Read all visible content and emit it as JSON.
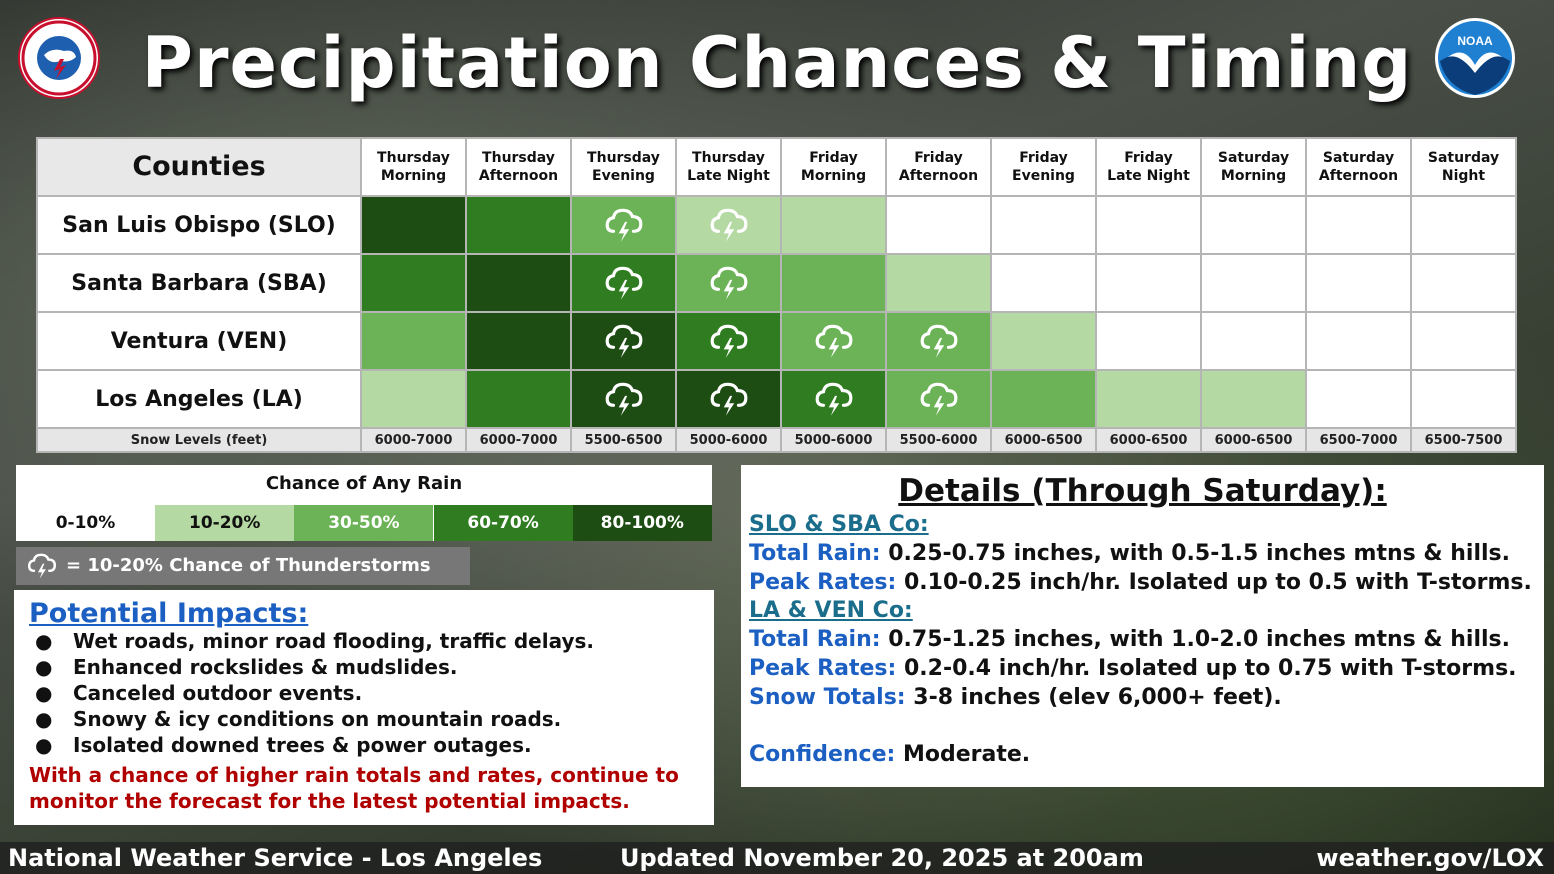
{
  "header": {
    "title": "Precipitation Chances & Timing",
    "left_logo": "National Weather Service",
    "right_logo": "NOAA"
  },
  "table": {
    "counties_header": "Counties",
    "periods": [
      [
        "Thursday",
        "Morning"
      ],
      [
        "Thursday",
        "Afternoon"
      ],
      [
        "Thursday",
        "Evening"
      ],
      [
        "Thursday",
        "Late Night"
      ],
      [
        "Friday",
        "Morning"
      ],
      [
        "Friday",
        "Afternoon"
      ],
      [
        "Friday",
        "Evening"
      ],
      [
        "Friday",
        "Late Night"
      ],
      [
        "Saturday",
        "Morning"
      ],
      [
        "Saturday",
        "Afternoon"
      ],
      [
        "Saturday",
        "Night"
      ]
    ],
    "counties": [
      {
        "name": "San Luis Obispo (SLO)",
        "chances": [
          "80-100%",
          "60-70%",
          "30-50%",
          "10-20%",
          "10-20%",
          "0-10%",
          "0-10%",
          "0-10%",
          "0-10%",
          "0-10%",
          "0-10%"
        ],
        "tstorms": [
          false,
          false,
          true,
          true,
          false,
          false,
          false,
          false,
          false,
          false,
          false
        ]
      },
      {
        "name": "Santa Barbara (SBA)",
        "chances": [
          "60-70%",
          "80-100%",
          "60-70%",
          "30-50%",
          "30-50%",
          "10-20%",
          "0-10%",
          "0-10%",
          "0-10%",
          "0-10%",
          "0-10%"
        ],
        "tstorms": [
          false,
          false,
          true,
          true,
          false,
          false,
          false,
          false,
          false,
          false,
          false
        ]
      },
      {
        "name": "Ventura (VEN)",
        "chances": [
          "30-50%",
          "80-100%",
          "80-100%",
          "60-70%",
          "30-50%",
          "30-50%",
          "10-20%",
          "0-10%",
          "0-10%",
          "0-10%",
          "0-10%"
        ],
        "tstorms": [
          false,
          false,
          true,
          true,
          true,
          true,
          false,
          false,
          false,
          false,
          false
        ]
      },
      {
        "name": "Los Angeles (LA)",
        "chances": [
          "10-20%",
          "60-70%",
          "80-100%",
          "80-100%",
          "60-70%",
          "30-50%",
          "30-50%",
          "10-20%",
          "10-20%",
          "0-10%",
          "0-10%"
        ],
        "tstorms": [
          false,
          false,
          true,
          true,
          true,
          true,
          false,
          false,
          false,
          false,
          false
        ]
      }
    ],
    "snow_label": "Snow Levels (feet)",
    "snow_levels": [
      "6000-7000",
      "6000-7000",
      "5500-6500",
      "5000-6000",
      "5000-6000",
      "5500-6000",
      "6000-6500",
      "6000-6500",
      "6000-6500",
      "6500-7000",
      "6500-7500"
    ]
  },
  "legend": {
    "title": "Chance of Any Rain",
    "bins": [
      {
        "label": "0-10%",
        "color": "#ffffff",
        "text_color": "#111111"
      },
      {
        "label": "10-20%",
        "color": "#b5d9a3",
        "text_color": "#111111"
      },
      {
        "label": "30-50%",
        "color": "#6bb356",
        "text_color": "#ffffff"
      },
      {
        "label": "60-70%",
        "color": "#2f7d20",
        "text_color": "#ffffff"
      },
      {
        "label": "80-100%",
        "color": "#1e4d14",
        "text_color": "#ffffff"
      }
    ],
    "tstorm_label": "= 10-20% Chance of Thunderstorms"
  },
  "impacts": {
    "title": "Potential Impacts:",
    "items": [
      "Wet roads, minor road flooding, traffic delays.",
      "Enhanced rockslides & mudslides.",
      "Canceled outdoor events.",
      "Snowy & icy conditions on mountain roads.",
      "Isolated downed trees & power outages."
    ],
    "note": "With a chance of higher rain totals and rates, continue to monitor the forecast for the latest potential impacts."
  },
  "details": {
    "title": "Details (Through Saturday):",
    "slo_sba_heading": "SLO & SBA Co:",
    "slo_rain_label": "Total Rain:",
    "slo_rain_value": "0.25-0.75 inches, with 0.5-1.5 inches mtns & hills.",
    "slo_peak_label": "Peak Rates:",
    "slo_peak_value": "0.10-0.25 inch/hr. Isolated up to 0.5 with T-storms.",
    "la_ven_heading": "LA & VEN Co:",
    "la_rain_label": "Total Rain:",
    "la_rain_value": "0.75-1.25 inches, with 1.0-2.0 inches mtns & hills.",
    "la_peak_label": "Peak Rates:",
    "la_peak_value": "0.2-0.4 inch/hr.  Isolated up to 0.75 with T-storms.",
    "snow_label": "Snow Totals:",
    "snow_value": "3-8 inches (elev 6,000+ feet).",
    "confidence_label": "Confidence:",
    "confidence_value": "Moderate."
  },
  "footer": {
    "left": "National Weather Service - Los Angeles",
    "center": "Updated November 20, 2025 at 200am",
    "right": "weather.gov/LOX"
  }
}
